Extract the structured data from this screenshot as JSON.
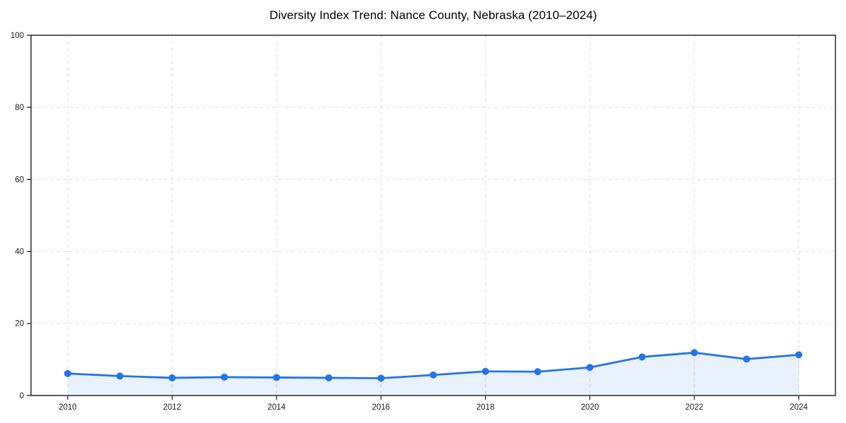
{
  "chart_data": {
    "type": "line",
    "title": "Diversity Index Trend: Nance County, Nebraska (2010–2024)",
    "x": [
      2010,
      2011,
      2012,
      2013,
      2014,
      2015,
      2016,
      2017,
      2018,
      2019,
      2020,
      2021,
      2022,
      2023,
      2024
    ],
    "series": [
      {
        "name": "Diversity Index",
        "values": [
          6.1,
          5.4,
          4.9,
          5.1,
          5.0,
          4.9,
          4.8,
          5.7,
          6.7,
          6.6,
          7.8,
          10.7,
          11.9,
          10.1,
          11.3
        ]
      }
    ],
    "xlabel": "",
    "ylabel": "",
    "ylim": [
      0,
      100
    ],
    "yticks": [
      0,
      20,
      40,
      60,
      80,
      100
    ],
    "xticks": [
      2010,
      2012,
      2014,
      2016,
      2018,
      2020,
      2022,
      2024
    ],
    "grid": true,
    "grid_style": "dashed",
    "legend": false,
    "area_fill": true,
    "markers": true,
    "colors": {
      "line": "#2474e8",
      "marker": "#2474e8",
      "area": "rgba(36,116,232,0.10)",
      "grid": "#dedede",
      "axis": "#1a1a1a",
      "text": "#1a1a1a",
      "title": "#000000",
      "background": "#ffffff"
    }
  }
}
